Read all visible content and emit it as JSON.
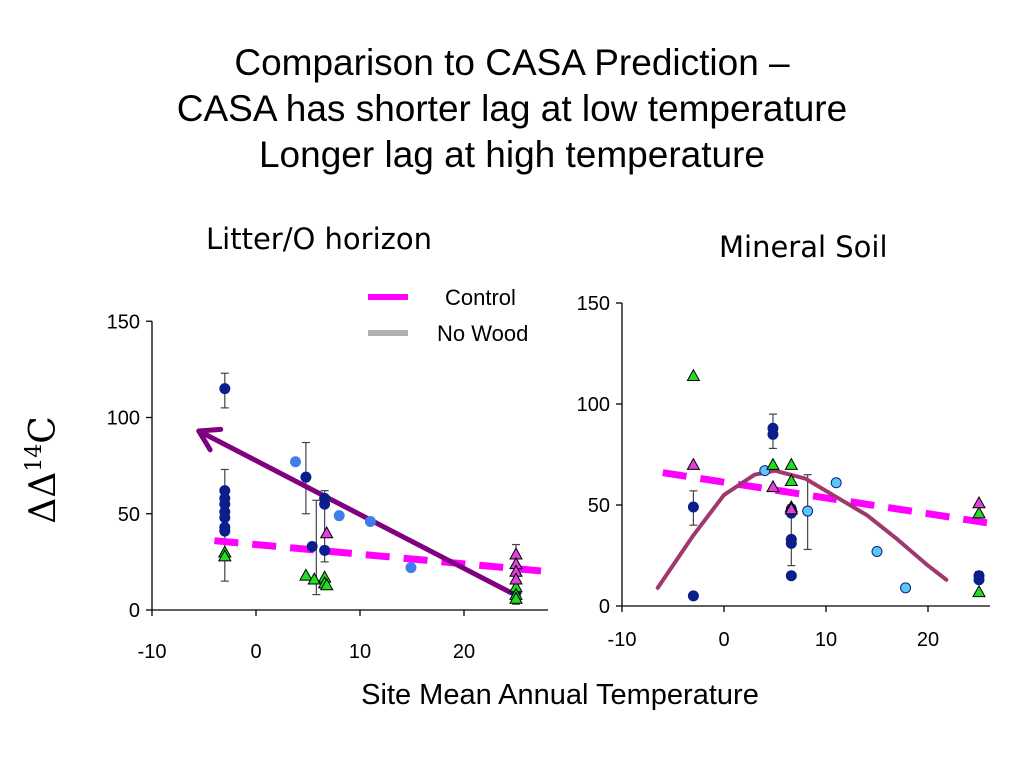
{
  "title_lines": [
    "Comparison to CASA Prediction –",
    "CASA has shorter lag at low temperature",
    "Longer lag at high temperature"
  ],
  "colors": {
    "control": "#ff00ff",
    "no_wood": "#b0b0b0",
    "purple_arrow": "#800080",
    "model_curve": "#a0386e",
    "dark_blue": "#0b1f8a",
    "light_blue": "#3f7ee8",
    "cyan": "#5cc7f0",
    "green": "#22dd22",
    "magenta_tri": "#e040e0",
    "axis": "#000000"
  },
  "legend": [
    {
      "label": "Control",
      "color": "#ff00ff"
    },
    {
      "label": "No Wood",
      "color": "#b0b0b0"
    }
  ],
  "y_axis_label": "ΔΔ14C",
  "x_axis_label": "Site Mean Annual Temperature",
  "chart_data": [
    {
      "type": "scatter",
      "title": "Litter/O horizon",
      "xlim": [
        -10,
        25
      ],
      "ylim": [
        0,
        150
      ],
      "xticks": [
        -10,
        0,
        10,
        20
      ],
      "yticks": [
        0,
        50,
        100,
        150
      ],
      "series": [
        {
          "marker": "dark_blue_circle",
          "points": [
            [
              -3,
              115
            ],
            [
              -3,
              62
            ],
            [
              -3,
              58
            ],
            [
              -3,
              55
            ],
            [
              -3,
              51
            ],
            [
              -3,
              48
            ],
            [
              -3,
              43
            ],
            [
              -3,
              41
            ],
            [
              4.8,
              69
            ],
            [
              5.4,
              33
            ],
            [
              6.6,
              58
            ],
            [
              6.6,
              55
            ],
            [
              6.6,
              31
            ],
            [
              25,
              9
            ]
          ]
        },
        {
          "marker": "light_blue_circle",
          "points": [
            [
              3.8,
              77
            ],
            [
              8,
              49
            ],
            [
              11,
              46
            ],
            [
              14.9,
              22
            ]
          ]
        },
        {
          "marker": "green_triangle",
          "points": [
            [
              -3,
              30
            ],
            [
              -3,
              28
            ],
            [
              4.8,
              18
            ],
            [
              5.6,
              16
            ],
            [
              6.6,
              17
            ],
            [
              6.6,
              14
            ],
            [
              6.8,
              13
            ],
            [
              25,
              12
            ],
            [
              25,
              8
            ],
            [
              25,
              6
            ]
          ]
        },
        {
          "marker": "magenta_triangle",
          "points": [
            [
              6.8,
              40
            ],
            [
              25,
              29
            ],
            [
              25,
              24
            ],
            [
              25,
              20
            ],
            [
              25,
              16
            ]
          ]
        }
      ],
      "error_bars": [
        {
          "x": -3,
          "low": 105,
          "high": 123
        },
        {
          "x": -3,
          "low": 15,
          "high": 73
        },
        {
          "x": 4.8,
          "low": 50,
          "high": 87
        },
        {
          "x": 5.8,
          "low": 8,
          "high": 57
        },
        {
          "x": 6.6,
          "low": 25,
          "high": 62
        },
        {
          "x": 25,
          "low": 3,
          "high": 34
        }
      ],
      "lines": [
        {
          "name": "Control",
          "style": "dashed",
          "color": "control",
          "x": [
            -4,
            28
          ],
          "y": [
            36,
            20
          ]
        }
      ],
      "arrow": {
        "from": [
          24.5,
          9
        ],
        "to": [
          -5.5,
          93
        ]
      }
    },
    {
      "type": "scatter",
      "title": "Mineral Soil",
      "xlim": [
        -10,
        25
      ],
      "ylim": [
        0,
        150
      ],
      "xticks": [
        -10,
        0,
        10,
        20
      ],
      "yticks": [
        0,
        50,
        100,
        150
      ],
      "series": [
        {
          "marker": "dark_blue_circle",
          "points": [
            [
              -3,
              49
            ],
            [
              -3,
              5
            ],
            [
              4.8,
              88
            ],
            [
              4.8,
              85
            ],
            [
              6.6,
              48
            ],
            [
              6.6,
              46
            ],
            [
              6.6,
              33
            ],
            [
              6.6,
              31
            ],
            [
              6.6,
              15
            ],
            [
              25,
              15
            ],
            [
              25,
              13
            ]
          ]
        },
        {
          "marker": "cyan_circle",
          "points": [
            [
              4,
              67
            ],
            [
              8.2,
              47
            ],
            [
              11,
              61
            ],
            [
              15,
              27
            ],
            [
              17.8,
              9
            ]
          ]
        },
        {
          "marker": "green_triangle",
          "points": [
            [
              -3,
              114
            ],
            [
              4.8,
              70
            ],
            [
              6.6,
              70
            ],
            [
              6.6,
              62
            ],
            [
              6.6,
              49
            ],
            [
              25,
              46
            ],
            [
              25,
              7
            ]
          ]
        },
        {
          "marker": "magenta_triangle",
          "points": [
            [
              -3,
              70
            ],
            [
              4.8,
              59
            ],
            [
              6.6,
              48
            ],
            [
              25,
              51
            ]
          ]
        }
      ],
      "error_bars": [
        {
          "x": -3,
          "low": 40,
          "high": 57
        },
        {
          "x": 4.8,
          "low": 78,
          "high": 95
        },
        {
          "x": 6.6,
          "low": 20,
          "high": 50
        },
        {
          "x": 8.2,
          "low": 28,
          "high": 65
        },
        {
          "x": 25,
          "low": 12,
          "high": 17
        }
      ],
      "lines": [
        {
          "name": "Control",
          "style": "dashed",
          "color": "control",
          "x": [
            -6,
            26
          ],
          "y": [
            66,
            41
          ]
        },
        {
          "name": "",
          "style": "solid",
          "color": "model_curve",
          "x": [
            -6.5,
            -3,
            0,
            3,
            5,
            8,
            11,
            14,
            17,
            20,
            21.8
          ],
          "y": [
            9,
            35,
            55,
            65,
            67,
            63,
            54,
            45,
            33,
            20,
            13
          ]
        }
      ]
    }
  ]
}
